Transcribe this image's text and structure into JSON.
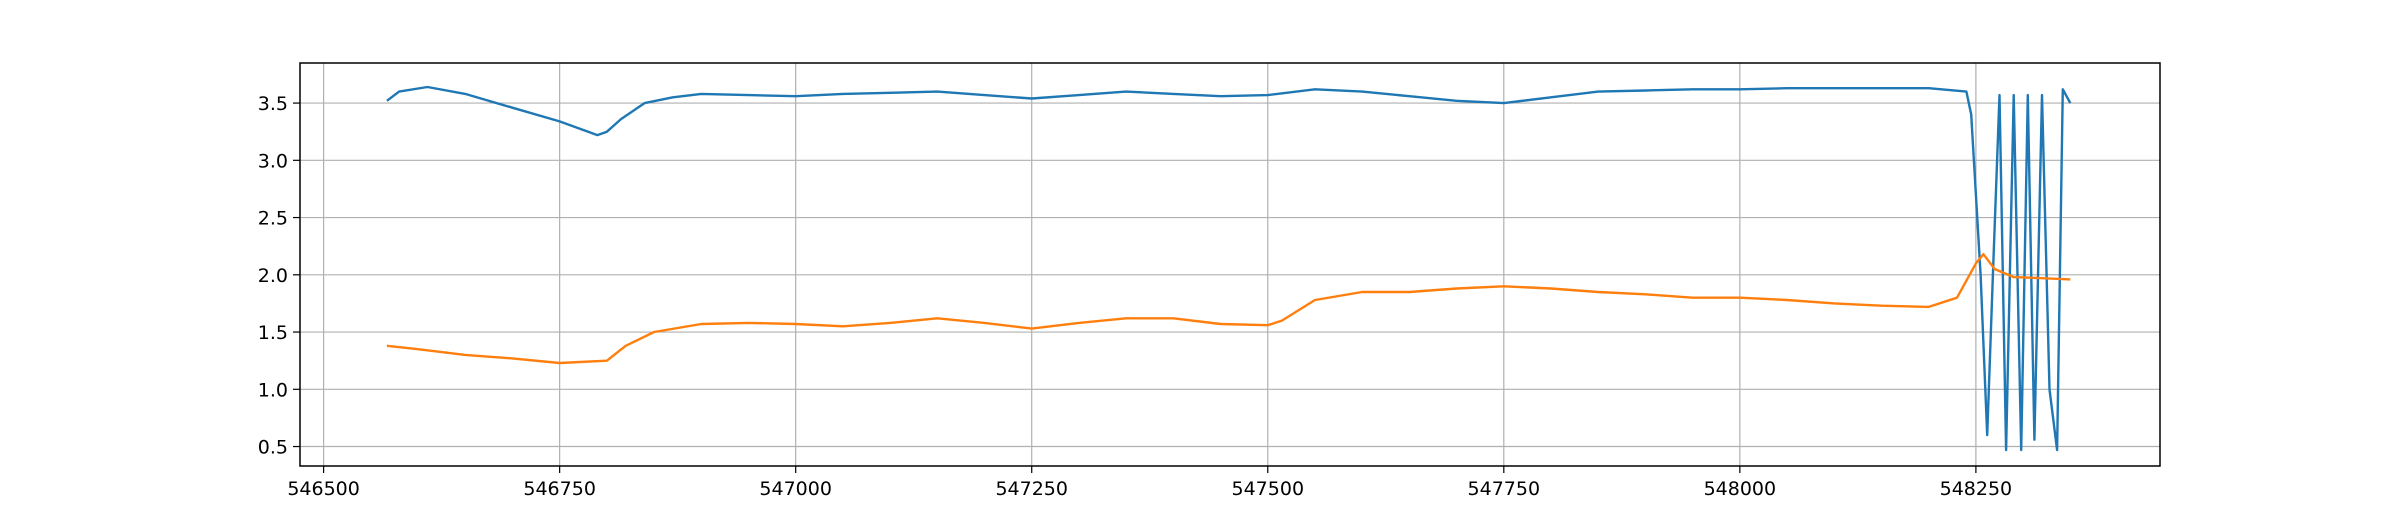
{
  "chart_data": {
    "type": "line",
    "grid": true,
    "xlim": [
      546475,
      548445
    ],
    "ylim": [
      0.33,
      3.85
    ],
    "x_ticks": [
      546500,
      546750,
      547000,
      547250,
      547500,
      547750,
      548000,
      548250
    ],
    "x_tick_labels": [
      "546500",
      "546750",
      "547000",
      "547250",
      "547500",
      "547750",
      "548000",
      "548250"
    ],
    "y_ticks": [
      0.5,
      1.0,
      1.5,
      2.0,
      2.5,
      3.0,
      3.5
    ],
    "y_tick_labels": [
      "0.5",
      "1.0",
      "1.5",
      "2.0",
      "2.5",
      "3.0",
      "3.5"
    ],
    "series": [
      {
        "color": "#1f77b4",
        "x": [
          546567,
          546580,
          546610,
          546650,
          546700,
          546750,
          546790,
          546800,
          546815,
          546840,
          546870,
          546900,
          546950,
          547000,
          547050,
          547100,
          547150,
          547200,
          547250,
          547300,
          547350,
          547400,
          547450,
          547500,
          547550,
          547600,
          547650,
          547700,
          547750,
          547800,
          547850,
          547900,
          547950,
          548000,
          548050,
          548100,
          548150,
          548200,
          548240,
          548245,
          548255,
          548262,
          548268,
          548275,
          548282,
          548290,
          548298,
          548305,
          548312,
          548320,
          548328,
          548336,
          548342,
          548350
        ],
        "y": [
          3.52,
          3.6,
          3.64,
          3.58,
          3.46,
          3.34,
          3.22,
          3.25,
          3.36,
          3.5,
          3.55,
          3.58,
          3.57,
          3.56,
          3.58,
          3.59,
          3.6,
          3.57,
          3.54,
          3.57,
          3.6,
          3.58,
          3.56,
          3.57,
          3.62,
          3.6,
          3.56,
          3.52,
          3.5,
          3.55,
          3.6,
          3.61,
          3.62,
          3.62,
          3.63,
          3.63,
          3.63,
          3.63,
          3.6,
          3.4,
          2.0,
          0.6,
          2.0,
          3.57,
          0.47,
          3.57,
          0.47,
          3.57,
          0.56,
          3.57,
          1.0,
          0.47,
          3.62,
          3.5
        ]
      },
      {
        "color": "#ff7f0e",
        "x": [
          546567,
          546600,
          546650,
          546700,
          546750,
          546800,
          546820,
          546850,
          546900,
          546950,
          547000,
          547050,
          547100,
          547150,
          547200,
          547250,
          547300,
          547350,
          547400,
          547450,
          547500,
          547515,
          547550,
          547600,
          547650,
          547700,
          547750,
          547800,
          547850,
          547900,
          547950,
          548000,
          548050,
          548100,
          548150,
          548200,
          548230,
          548250,
          548258,
          548270,
          548290,
          548320,
          548350
        ],
        "y": [
          1.38,
          1.35,
          1.3,
          1.27,
          1.23,
          1.25,
          1.38,
          1.5,
          1.57,
          1.58,
          1.57,
          1.55,
          1.58,
          1.62,
          1.58,
          1.53,
          1.58,
          1.62,
          1.62,
          1.57,
          1.56,
          1.6,
          1.78,
          1.85,
          1.85,
          1.88,
          1.9,
          1.88,
          1.85,
          1.83,
          1.8,
          1.8,
          1.78,
          1.75,
          1.73,
          1.72,
          1.8,
          2.1,
          2.18,
          2.05,
          1.98,
          1.97,
          1.96
        ]
      }
    ]
  }
}
